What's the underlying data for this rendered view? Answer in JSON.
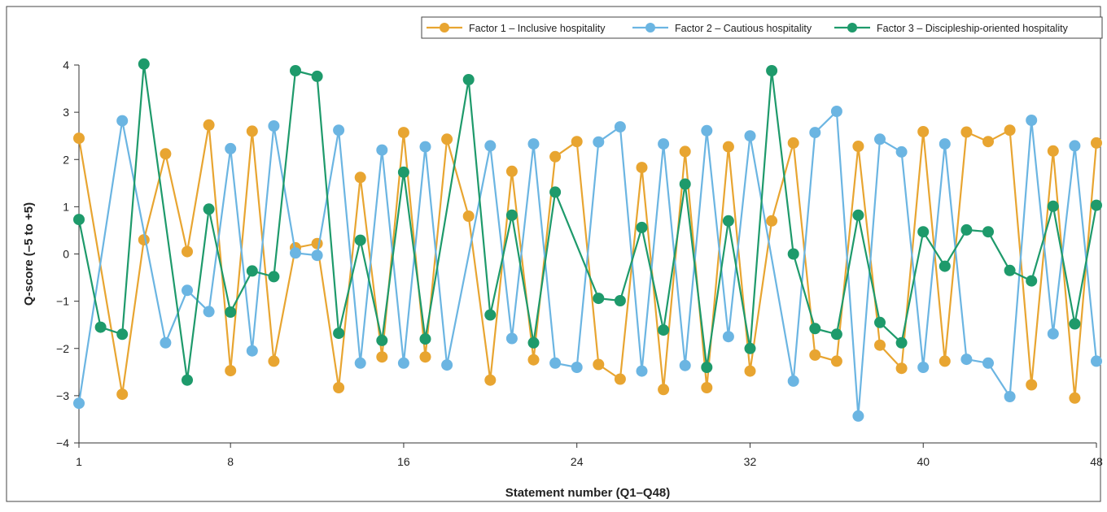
{
  "chart_data": {
    "type": "line",
    "title": "",
    "xlabel": "Statement number (Q1–Q48)",
    "ylabel": "Q-score (–5 to +5)",
    "xlim": [
      1,
      48
    ],
    "ylim": [
      -4,
      4
    ],
    "xticks": [
      1,
      8,
      16,
      24,
      32,
      40,
      48
    ],
    "yticks": [
      -4,
      -3,
      -2,
      -1,
      0,
      1,
      2,
      3,
      4
    ],
    "ytick_labels": [
      "−4",
      "−3",
      "−2",
      "−1",
      "0",
      "1",
      "2",
      "3",
      "4"
    ],
    "grid": false,
    "legend_position": "top-right",
    "x": [
      1,
      2,
      3,
      4,
      5,
      6,
      7,
      8,
      9,
      10,
      11,
      12,
      13,
      14,
      15,
      16,
      17,
      18,
      19,
      20,
      21,
      22,
      23,
      24,
      25,
      26,
      27,
      28,
      29,
      30,
      31,
      32,
      33,
      34,
      35,
      36,
      37,
      38,
      39,
      40,
      41,
      42,
      43,
      44,
      45,
      46,
      47,
      48
    ],
    "series": [
      {
        "name": "Factor 1 – Inclusive hospitality",
        "color": "#E8A531",
        "values": [
          2.45,
          null,
          -2.97,
          0.3,
          2.12,
          0.05,
          2.73,
          -2.47,
          2.6,
          -2.27,
          0.13,
          0.22,
          -2.83,
          1.62,
          -2.18,
          2.57,
          -2.18,
          2.43,
          0.8,
          -2.67,
          1.75,
          -2.24,
          2.06,
          2.38,
          -2.34,
          -2.65,
          1.83,
          -2.87,
          2.17,
          -2.83,
          2.27,
          -2.48,
          0.7,
          2.35,
          -2.14,
          -2.27,
          2.28,
          -1.93,
          -2.42,
          2.59,
          -2.27,
          2.58,
          2.38,
          2.62,
          -2.77,
          2.18,
          -3.05,
          2.35
        ]
      },
      {
        "name": "Factor 2 – Cautious hospitality",
        "color": "#6BB5E2",
        "values": [
          -3.16,
          null,
          2.82,
          null,
          -1.88,
          -0.77,
          -1.22,
          2.23,
          -2.05,
          2.71,
          0.02,
          -0.03,
          2.62,
          -2.31,
          2.2,
          -2.31,
          2.27,
          -2.35,
          null,
          2.29,
          -1.79,
          2.33,
          -2.31,
          -2.4,
          2.37,
          2.69,
          -2.48,
          2.33,
          -2.36,
          2.61,
          -1.75,
          2.5,
          null,
          -2.69,
          2.57,
          3.02,
          -3.43,
          2.43,
          2.16,
          -2.4,
          2.33,
          -2.23,
          -2.31,
          -3.02,
          2.83,
          -1.69,
          2.29,
          -2.27
        ]
      },
      {
        "name": "Factor 3 – Discipleship-oriented hospitality",
        "color": "#1E9A6B",
        "values": [
          0.73,
          -1.55,
          -1.7,
          4.02,
          null,
          -2.67,
          0.95,
          -1.23,
          -0.36,
          -0.48,
          3.88,
          3.76,
          -1.68,
          0.29,
          -1.83,
          1.73,
          -1.8,
          null,
          3.69,
          -1.29,
          0.82,
          -1.88,
          1.31,
          null,
          -0.94,
          -0.99,
          0.56,
          -1.61,
          1.48,
          -2.4,
          0.7,
          -2.0,
          3.88,
          0.0,
          -1.58,
          -1.7,
          0.82,
          -1.45,
          -1.88,
          0.47,
          -0.26,
          0.51,
          0.47,
          -0.35,
          -0.57,
          1.01,
          -1.48,
          1.03
        ]
      }
    ]
  }
}
